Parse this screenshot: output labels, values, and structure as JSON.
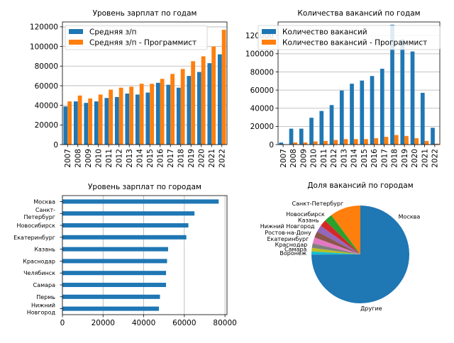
{
  "chart_data": [
    {
      "type": "bar",
      "title": "Уровень зарплат по годам",
      "xlabel": "",
      "ylabel": "",
      "categories": [
        "2007",
        "2008",
        "2009",
        "2010",
        "2011",
        "2012",
        "2013",
        "2014",
        "2015",
        "2016",
        "2017",
        "2018",
        "2019",
        "2020",
        "2021",
        "2022"
      ],
      "ylim": [
        0,
        125000
      ],
      "yticks": [
        0,
        20000,
        40000,
        60000,
        80000,
        100000,
        120000
      ],
      "grid": "y",
      "legend": "top-left",
      "series": [
        {
          "name": "Средняя з/п",
          "color": "#1f77b4",
          "values": [
            38900,
            44000,
            42500,
            44000,
            47500,
            48500,
            52000,
            51000,
            53000,
            63000,
            61000,
            58000,
            70000,
            74000,
            83000,
            92000
          ]
        },
        {
          "name": "Средняя з/п - Программист",
          "color": "#ff7f0e",
          "values": [
            44000,
            50000,
            47000,
            51000,
            56000,
            58000,
            59000,
            62000,
            62000,
            67000,
            72000,
            77000,
            85000,
            90000,
            100000,
            117000
          ]
        }
      ]
    },
    {
      "type": "bar",
      "title": "Количества вакансий по годам",
      "xlabel": "",
      "ylabel": "",
      "categories": [
        "2007",
        "2008",
        "2009",
        "2010",
        "2011",
        "2012",
        "2013",
        "2014",
        "2015",
        "2016",
        "2017",
        "2018",
        "2019",
        "2020",
        "2021",
        "2022"
      ],
      "ylim": [
        0,
        135000
      ],
      "yticks": [
        0,
        20000,
        40000,
        60000,
        80000,
        100000,
        120000
      ],
      "grid": "y",
      "legend": "top-left",
      "series": [
        {
          "name": "Количество вакансий",
          "color": "#1f77b4",
          "values": [
            2200,
            17500,
            17500,
            29500,
            37000,
            43500,
            59500,
            67000,
            70500,
            75500,
            83500,
            132000,
            116000,
            102500,
            57000,
            18500
          ]
        },
        {
          "name": "Количество вакансий - Программист",
          "color": "#ff7f0e",
          "values": [
            300,
            2300,
            2300,
            3500,
            4000,
            5000,
            6000,
            6000,
            6000,
            7000,
            8500,
            10500,
            9500,
            7000,
            4000,
            1000
          ]
        }
      ]
    },
    {
      "type": "bar",
      "orientation": "horizontal",
      "title": "Уровень зарплат по городам",
      "xlabel": "",
      "ylabel": "",
      "categories": [
        "Москва",
        "Санкт-\nПетербург",
        "Новосибирск",
        "Екатеринбург",
        "Казань",
        "Краснодар",
        "Челябинск",
        "Самара",
        "Пермь",
        "Нижний\nНовгород"
      ],
      "xlim": [
        0,
        81000
      ],
      "xticks": [
        0,
        20000,
        40000,
        60000,
        80000
      ],
      "grid": "x",
      "series": [
        {
          "name": "",
          "color": "#1f77b4",
          "values": [
            76900,
            65000,
            62000,
            61000,
            52000,
            51500,
            51000,
            51000,
            48000,
            47500
          ]
        }
      ]
    },
    {
      "type": "pie",
      "title": "Доля вакансий по городам",
      "labels": [
        "Москва",
        "Санкт-Петербург",
        "Новосибирск",
        "Казань",
        "Нижний Новгород",
        "Ростов-на-Дону",
        "Екатеринбург",
        "Краснодар",
        "Самара",
        "Воронеж",
        "Другие"
      ],
      "values": [
        0.25,
        0.1015,
        0.027,
        0.022,
        0.022,
        0.021,
        0.02,
        0.015,
        0.012,
        0.01,
        0.4995
      ],
      "colors": [
        "#1f77b4",
        "#ff7f0e",
        "#2ca02c",
        "#d62728",
        "#9467bd",
        "#8c564b",
        "#e377c2",
        "#7f7f7f",
        "#bcbd22",
        "#17becf",
        "#1f77b4"
      ]
    }
  ]
}
